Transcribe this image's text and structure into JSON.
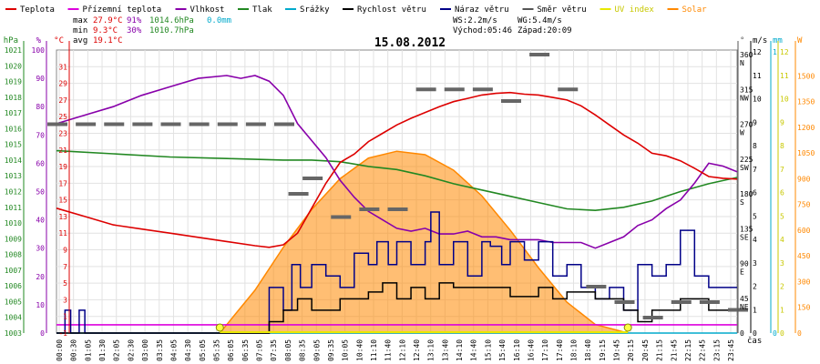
{
  "legend": [
    {
      "label": "Teplota",
      "color": "#dd0000"
    },
    {
      "label": "Přízemní teplota",
      "color": "#dd00dd"
    },
    {
      "label": "Vlhkost",
      "color": "#8800aa"
    },
    {
      "label": "Tlak",
      "color": "#228822"
    },
    {
      "label": "Srážky",
      "color": "#00aacc"
    },
    {
      "label": "Rychlost větru",
      "color": "#000000"
    },
    {
      "label": "Náraz větru",
      "color": "#000088"
    },
    {
      "label": "Směr větru",
      "color": "#555555"
    },
    {
      "label": "UV index",
      "color": "#e8e800"
    },
    {
      "label": "Solar",
      "color": "#ff8800"
    }
  ],
  "stats": {
    "max_label": "max",
    "max_temp": "27.9°C",
    "max_hum": "91%",
    "max_press": "1014.6hPa",
    "rain": "0.0mm",
    "min_label": "min",
    "min_temp": "9.3°C",
    "min_hum": "30%",
    "min_press": "1010.7hPa",
    "avg_label": "avg",
    "avg_temp": "19.1°C",
    "ws": "WS:2.2m/s",
    "wg": "WG:5.4m/s",
    "sunrise": "Východ:05:46",
    "sunset": "Západ:20:09"
  },
  "chart_data": {
    "type": "line",
    "title": "15.08.2012",
    "xlabel": "čas",
    "x_ticks": [
      "00:00",
      "00:30",
      "01:05",
      "01:30",
      "02:05",
      "02:30",
      "03:00",
      "03:35",
      "04:05",
      "04:30",
      "05:05",
      "05:35",
      "06:05",
      "06:35",
      "07:05",
      "07:35",
      "08:05",
      "08:35",
      "09:05",
      "09:35",
      "10:05",
      "10:40",
      "11:10",
      "11:40",
      "12:10",
      "12:40",
      "13:10",
      "13:40",
      "14:10",
      "14:40",
      "15:10",
      "15:40",
      "16:10",
      "16:40",
      "17:10",
      "17:40",
      "18:10",
      "18:40",
      "19:15",
      "19:45",
      "20:15",
      "20:45",
      "21:15",
      "21:45",
      "22:15",
      "22:45",
      "23:15",
      "23:45"
    ],
    "axes": {
      "pressure_hpa": {
        "label": "hPa",
        "range": [
          1003,
          1021
        ],
        "ticks": [
          "1021",
          "1020",
          "1019",
          "1018",
          "1017",
          "1016",
          "1015",
          "1014",
          "1013",
          "1012",
          "1011",
          "1010",
          "1009",
          "1008",
          "1007",
          "1006",
          "1005",
          "1004",
          "1003"
        ]
      },
      "humidity_pct": {
        "label": "%",
        "range": [
          0,
          100
        ],
        "ticks": [
          "100",
          "90",
          "80",
          "70",
          "60",
          "50",
          "40",
          "30",
          "20",
          "10",
          "0"
        ]
      },
      "temperature_c": {
        "label": "°C",
        "range": [
          -1,
          33
        ],
        "ticks": [
          "31",
          "29",
          "27",
          "25",
          "23",
          "21",
          "19",
          "17",
          "15",
          "13",
          "11",
          "9",
          "7",
          "5",
          "3",
          "1",
          "-1"
        ]
      },
      "wind_dir": {
        "label": "°",
        "ticks": [
          "360 N",
          "315 NW",
          "270 W",
          "225 SW",
          "180 S",
          "135 SE",
          "90 E",
          "45 NE",
          "0"
        ]
      },
      "wind_speed_ms": {
        "label": "m/s",
        "range": [
          0,
          12
        ],
        "ticks": [
          "12",
          "11",
          "10",
          "9",
          "8",
          "7",
          "6",
          "5",
          "4",
          "3",
          "2",
          "1",
          "0"
        ]
      },
      "rain_mm": {
        "label": "mm",
        "range": [
          0,
          1
        ],
        "ticks": [
          "1",
          "0"
        ]
      },
      "uv_index": {
        "range": [
          0,
          12
        ],
        "ticks": [
          "12",
          "11",
          "10",
          "9",
          "8",
          "7",
          "6",
          "5",
          "4",
          "3",
          "2",
          "1",
          "0"
        ]
      },
      "solar_w": {
        "label": "W",
        "range": [
          0,
          1650
        ],
        "ticks": [
          "1500",
          "1350",
          "1200",
          "1050",
          "900",
          "750",
          "600",
          "450",
          "300",
          "150",
          "0"
        ]
      }
    },
    "series": [
      {
        "name": "Teplota",
        "unit": "°C",
        "axis": "temperature_c",
        "x": [
          0,
          1,
          2,
          3,
          4,
          5,
          6,
          7,
          7.5,
          8,
          8.5,
          9,
          9.5,
          10,
          10.5,
          11,
          11.5,
          12,
          12.5,
          13,
          13.5,
          14,
          14.5,
          15,
          15.5,
          16,
          16.5,
          17,
          17.5,
          18,
          18.5,
          19,
          19.5,
          20,
          20.5,
          21,
          21.5,
          22,
          22.5,
          23,
          23.5,
          24
        ],
        "values": [
          14,
          13,
          12,
          11.5,
          11,
          10.5,
          10,
          9.5,
          9.3,
          9.6,
          11,
          14,
          17,
          19.5,
          20.5,
          22,
          23,
          24,
          24.8,
          25.5,
          26.2,
          26.8,
          27.2,
          27.6,
          27.8,
          27.9,
          27.7,
          27.6,
          27.3,
          27,
          26.3,
          25.2,
          24,
          22.8,
          21.8,
          20.6,
          20.3,
          19.7,
          18.8,
          17.8,
          17.6,
          17.5
        ]
      },
      {
        "name": "Přízemní teplota",
        "unit": "°C",
        "axis": "temperature_c",
        "x": [
          0,
          24
        ],
        "values": [
          0,
          0
        ]
      },
      {
        "name": "Vlhkost",
        "unit": "%",
        "axis": "humidity_pct",
        "x": [
          0,
          1,
          2,
          3,
          4,
          5,
          6,
          6.5,
          7,
          7.5,
          8,
          8.5,
          9,
          9.5,
          10,
          10.5,
          11,
          11.5,
          12,
          12.5,
          13,
          13.5,
          14,
          14.5,
          15,
          15.5,
          16,
          16.5,
          17,
          17.5,
          18,
          18.5,
          19,
          19.5,
          20,
          20.5,
          21,
          21.5,
          22,
          22.5,
          23,
          23.5,
          24
        ],
        "values": [
          74,
          77,
          80,
          84,
          87,
          90,
          91,
          90,
          91,
          89,
          84,
          74,
          68,
          62,
          54,
          48,
          43,
          40,
          37,
          36,
          37,
          35,
          35,
          36,
          34,
          34,
          33,
          33,
          33,
          32,
          32,
          32,
          30,
          32,
          34,
          38,
          40,
          44,
          47,
          53,
          60,
          59,
          57
        ]
      },
      {
        "name": "Tlak",
        "unit": "hPa",
        "axis": "pressure_hpa",
        "x": [
          0,
          2,
          4,
          6,
          8,
          9,
          10,
          11,
          12,
          13,
          14,
          15,
          16,
          17,
          18,
          19,
          20,
          21,
          22,
          23,
          24
        ],
        "values": [
          1014.6,
          1014.4,
          1014.2,
          1014.1,
          1014.0,
          1014.0,
          1013.9,
          1013.6,
          1013.4,
          1013.0,
          1012.5,
          1012.1,
          1011.7,
          1011.3,
          1010.9,
          1010.8,
          1011.0,
          1011.4,
          1012.0,
          1012.5,
          1012.9
        ]
      },
      {
        "name": "Srážky",
        "unit": "mm",
        "axis": "rain_mm",
        "x": [
          0,
          24
        ],
        "values": [
          0,
          0
        ]
      },
      {
        "name": "Rychlost větru",
        "unit": "m/s",
        "axis": "wind_speed_ms",
        "x": [
          0,
          2,
          4,
          6,
          7,
          7.5,
          8,
          8.5,
          9,
          10,
          11,
          11.5,
          12,
          12.5,
          13,
          13.5,
          14,
          15,
          16,
          17,
          17.5,
          18,
          19,
          20,
          20.5,
          21,
          22,
          23,
          24
        ],
        "values": [
          0,
          0,
          0,
          0,
          0,
          0.5,
          1,
          1.5,
          1,
          1.5,
          1.8,
          2.2,
          1.5,
          2,
          1.5,
          2.2,
          2,
          2,
          1.6,
          2,
          1.5,
          1.8,
          1.5,
          1,
          0.5,
          1,
          1.5,
          1,
          1
        ]
      },
      {
        "name": "Náraz větru",
        "unit": "m/s",
        "axis": "wind_speed_ms",
        "x": [
          0,
          0.3,
          0.5,
          0.8,
          1,
          1.5,
          2,
          3,
          4,
          5,
          6,
          7,
          7.5,
          8,
          8.3,
          8.6,
          9,
          9.5,
          10,
          10.5,
          11,
          11.3,
          11.7,
          12,
          12.5,
          13,
          13.2,
          13.5,
          14,
          14.5,
          15,
          15.3,
          15.7,
          16,
          16.5,
          17,
          17.5,
          18,
          18.5,
          19,
          19.5,
          20,
          20.5,
          21,
          21.5,
          22,
          22.5,
          23,
          23.5,
          24
        ],
        "values": [
          0,
          1,
          0,
          1,
          0,
          0,
          0,
          0,
          0,
          0,
          0,
          0,
          2,
          1,
          3,
          2,
          3,
          2.5,
          2,
          3.5,
          3,
          4,
          3,
          4,
          3,
          4,
          5.3,
          3,
          4,
          2.5,
          4,
          3.8,
          3,
          4,
          3.2,
          4,
          2.5,
          3,
          2,
          1.5,
          2,
          1,
          3,
          2.5,
          3,
          4.5,
          2.5,
          2,
          2,
          2
        ]
      },
      {
        "name": "Směr větru",
        "unit": "°",
        "axis": "wind_dir",
        "x": [
          0,
          1,
          2,
          3,
          4,
          5,
          6,
          7,
          8,
          8.5,
          9,
          10,
          11,
          12,
          13,
          14,
          15,
          16,
          17,
          18,
          19,
          20,
          21,
          22,
          23,
          24
        ],
        "values": [
          270,
          270,
          270,
          270,
          270,
          270,
          270,
          270,
          270,
          180,
          200,
          150,
          160,
          160,
          315,
          315,
          315,
          300,
          360,
          315,
          60,
          40,
          20,
          40,
          40,
          30
        ]
      },
      {
        "name": "UV index",
        "unit": "",
        "axis": "uv_index",
        "x": [
          0,
          5.76,
          20.15,
          24
        ],
        "values": [
          0,
          0,
          0,
          0
        ]
      },
      {
        "name": "Solar",
        "unit": "W",
        "axis": "solar_w",
        "x": [
          5.76,
          7,
          8,
          9,
          10,
          11,
          12,
          13,
          14,
          15,
          16,
          17,
          18,
          19,
          20.15
        ],
        "values": [
          0,
          250,
          500,
          720,
          900,
          1020,
          1060,
          1040,
          950,
          800,
          600,
          380,
          180,
          50,
          0
        ]
      }
    ]
  }
}
